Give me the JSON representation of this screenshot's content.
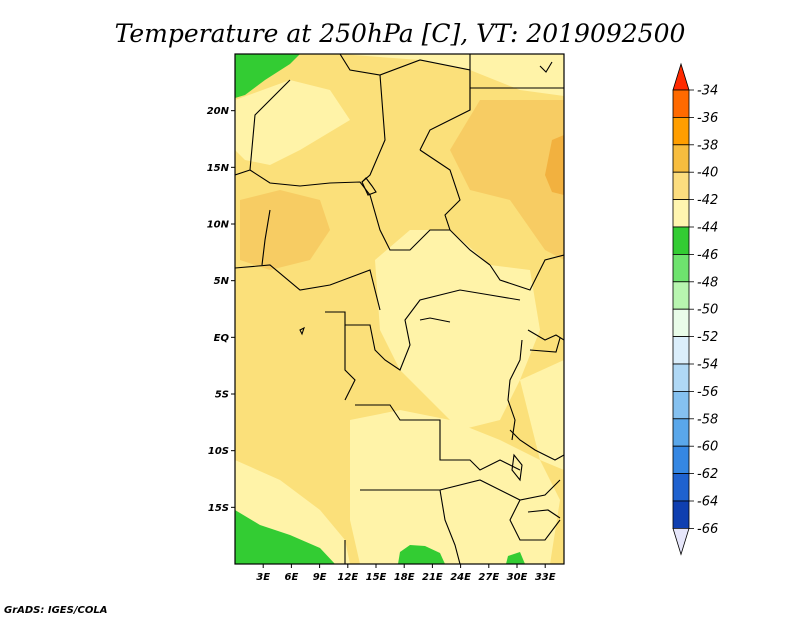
{
  "title": "Temperature at 250hPa [C], VT: 2019092500",
  "credit": "GrADS: IGES/COLA",
  "map": {
    "lon_range": [
      0,
      35
    ],
    "lat_range": [
      -20,
      25
    ],
    "lon_ticks": [
      "3E",
      "6E",
      "9E",
      "12E",
      "15E",
      "18E",
      "21E",
      "24E",
      "27E",
      "30E",
      "33E"
    ],
    "lat_ticks": [
      "20N",
      "15N",
      "10N",
      "5N",
      "EQ",
      "5S",
      "10S",
      "15S"
    ],
    "field_colors": {
      "c44_46": "#33cc33",
      "c42_44": "#fff3a8",
      "c40_42": "#fbe07a",
      "c38_40": "#f7cc63",
      "c36_38": "#f2b13f"
    }
  },
  "colorbar": {
    "labels": [
      "-34",
      "-36",
      "-38",
      "-40",
      "-42",
      "-44",
      "-46",
      "-48",
      "-50",
      "-52",
      "-54",
      "-56",
      "-58",
      "-60",
      "-62",
      "-64",
      "-66"
    ],
    "colors": [
      "#ff2a00",
      "#ff6a00",
      "#ff9e00",
      "#f7bd3f",
      "#fcdd7f",
      "#fff5b0",
      "#33cc33",
      "#6ee36e",
      "#b8f5b0",
      "#e9fce9",
      "#dbeefb",
      "#b0d8f5",
      "#85c1f0",
      "#5aa7ea",
      "#3587e3",
      "#1f62cf",
      "#0f3fb0",
      "#0a1a80"
    ],
    "under_color": "#e6e6fa"
  }
}
